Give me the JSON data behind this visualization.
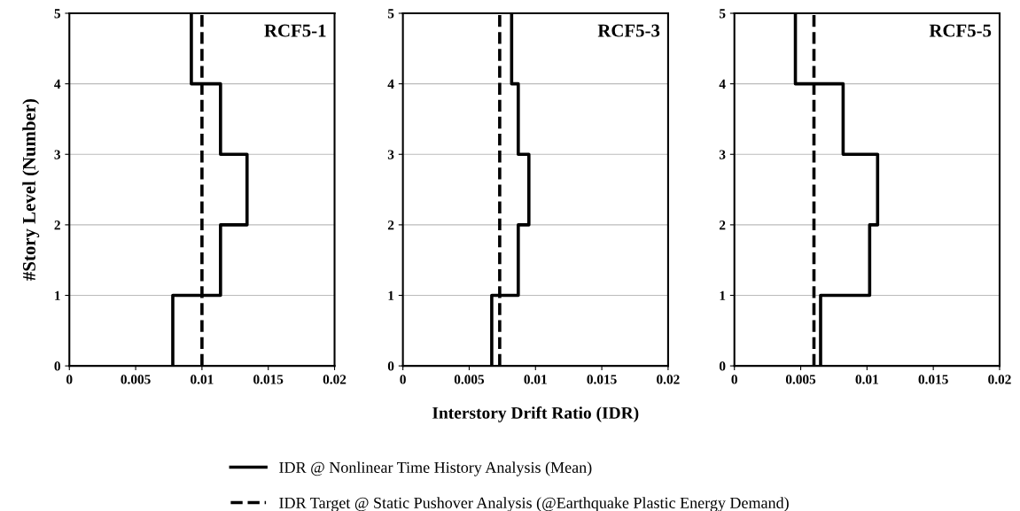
{
  "chart_data": [
    {
      "type": "line",
      "title": "RCF5-1",
      "ylabel": "#Story Level (Number)",
      "xlim": [
        0,
        0.02
      ],
      "xticks": [
        0,
        0.005,
        0.01,
        0.015,
        0.02
      ],
      "ylim": [
        0,
        5
      ],
      "yticks": [
        0,
        1,
        2,
        3,
        4,
        5
      ],
      "grid": "y",
      "legend": "bottom",
      "series": [
        {
          "name": "IDR @ Nonlinear Time History Analysis (Mean)",
          "color": "#000000",
          "line_style": "solid",
          "x": [
            0.0078,
            0.0078,
            0.0114,
            0.0114,
            0.0134,
            0.0134,
            0.0114,
            0.0114,
            0.0092,
            0.0092
          ],
          "values": [
            0,
            1,
            1,
            2,
            2,
            3,
            3,
            4,
            4,
            5
          ]
        },
        {
          "name": "IDR Target @ Static Pushover Analysis (@Earthquake Plastic Energy Demand)",
          "color": "#000000",
          "line_style": "dashed",
          "x": [
            0.01,
            0.01
          ],
          "values": [
            0,
            5
          ]
        }
      ]
    },
    {
      "type": "line",
      "title": "RCF5-3",
      "xlabel": "Interstory Drift Ratio (IDR)",
      "xlim": [
        0,
        0.02
      ],
      "xticks": [
        0,
        0.005,
        0.01,
        0.015,
        0.02
      ],
      "ylim": [
        0,
        5
      ],
      "yticks": [
        0,
        1,
        2,
        3,
        4,
        5
      ],
      "grid": "y",
      "series": [
        {
          "color": "#000000",
          "line_style": "solid",
          "x": [
            0.0067,
            0.0067,
            0.0087,
            0.0087,
            0.0095,
            0.0095,
            0.0087,
            0.0087,
            0.0082,
            0.0082
          ],
          "values": [
            0,
            1,
            1,
            2,
            2,
            3,
            3,
            4,
            4,
            5
          ]
        },
        {
          "color": "#000000",
          "line_style": "dashed",
          "x": [
            0.0073,
            0.0073
          ],
          "values": [
            0,
            5
          ]
        }
      ]
    },
    {
      "type": "line",
      "title": "RCF5-5",
      "xlim": [
        0,
        0.02
      ],
      "xticks": [
        0,
        0.005,
        0.01,
        0.015,
        0.02
      ],
      "ylim": [
        0,
        5
      ],
      "yticks": [
        0,
        1,
        2,
        3,
        4,
        5
      ],
      "grid": "y",
      "series": [
        {
          "color": "#000000",
          "line_style": "solid",
          "x": [
            0.0065,
            0.0065,
            0.0102,
            0.0102,
            0.0108,
            0.0108,
            0.0082,
            0.0082,
            0.0046,
            0.0046
          ],
          "values": [
            0,
            1,
            1,
            2,
            2,
            3,
            3,
            4,
            4,
            5
          ]
        },
        {
          "color": "#000000",
          "line_style": "dashed",
          "x": [
            0.006,
            0.006
          ],
          "values": [
            0,
            5
          ]
        }
      ]
    }
  ]
}
